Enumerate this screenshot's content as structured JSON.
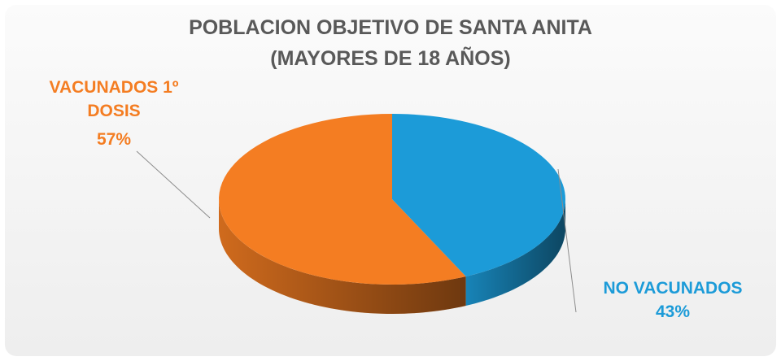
{
  "chart_data": {
    "type": "pie",
    "title": "POBLACION OBJETIVO DE SANTA ANITA",
    "subtitle": "(MAYORES DE 18 AÑOS)",
    "categories": [
      "VACUNADOS 1º DOSIS",
      "NO VACUNADOS"
    ],
    "values": [
      57,
      43
    ],
    "value_labels": [
      "57%",
      "43%"
    ],
    "colors": [
      "#f47d22",
      "#1c9bd8"
    ]
  }
}
